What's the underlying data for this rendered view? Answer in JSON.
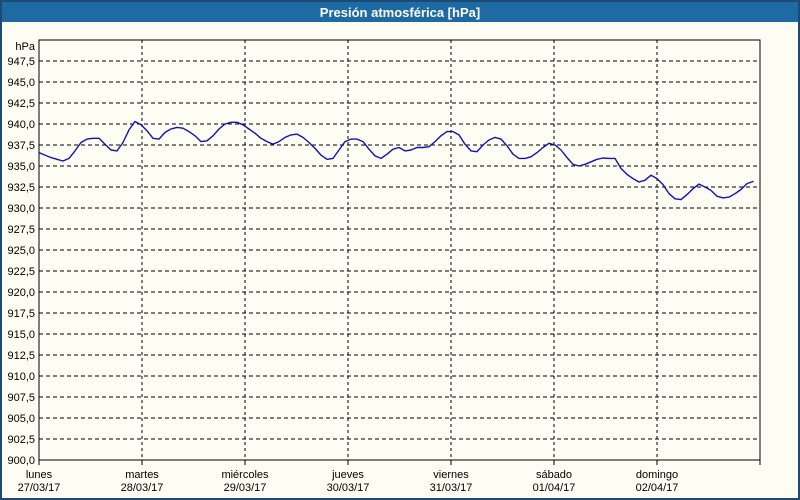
{
  "window": {
    "title": "Presión atmosférica [hPa]"
  },
  "colors": {
    "titlebar_bg": "#1e6ba4",
    "titlebar_text": "#ffffff",
    "window_border": "#1c4a74",
    "background": "#fdfdf4",
    "grid": "#000000",
    "series_line": "#1212b2"
  },
  "chart_data": {
    "type": "line",
    "title": "Presión atmosférica [hPa]",
    "grid": "dashed",
    "legend": "none",
    "y_axis": {
      "unit_label": "hPa",
      "min": 900,
      "max": 950,
      "tick_step": 2.5,
      "decimal_separator": ",",
      "tick_labels": [
        "947,5",
        "945,0",
        "942,5",
        "940,0",
        "937,5",
        "935,0",
        "932,5",
        "930,0",
        "927,5",
        "925,0",
        "922,5",
        "920,0",
        "917,5",
        "915,0",
        "912,5",
        "910,0",
        "907,5",
        "905,0",
        "902,5",
        "900,0"
      ]
    },
    "x_axis": {
      "days": [
        {
          "name": "lunes",
          "date": "27/03/17"
        },
        {
          "name": "martes",
          "date": "28/03/17"
        },
        {
          "name": "miércoles",
          "date": "29/03/17"
        },
        {
          "name": "jueves",
          "date": "30/03/17"
        },
        {
          "name": "viernes",
          "date": "31/03/17"
        },
        {
          "name": "sábado",
          "date": "01/04/17"
        },
        {
          "name": "domingo",
          "date": "02/04/17"
        }
      ]
    },
    "series": [
      {
        "name": "Presión atmosférica",
        "unit": "hPa",
        "points": [
          [
            0.0,
            936.6
          ],
          [
            0.058,
            936.3
          ],
          [
            0.117,
            936.0
          ],
          [
            0.175,
            935.8
          ],
          [
            0.233,
            935.6
          ],
          [
            0.291,
            935.9
          ],
          [
            0.35,
            936.8
          ],
          [
            0.408,
            937.8
          ],
          [
            0.466,
            938.2
          ],
          [
            0.524,
            938.3
          ],
          [
            0.583,
            938.3
          ],
          [
            0.641,
            937.6
          ],
          [
            0.699,
            936.9
          ],
          [
            0.757,
            936.8
          ],
          [
            0.816,
            937.8
          ],
          [
            0.874,
            939.3
          ],
          [
            0.932,
            940.3
          ],
          [
            0.99,
            939.9
          ],
          [
            1.049,
            939.2
          ],
          [
            1.107,
            938.3
          ],
          [
            1.165,
            938.2
          ],
          [
            1.223,
            939.0
          ],
          [
            1.282,
            939.4
          ],
          [
            1.34,
            939.6
          ],
          [
            1.398,
            939.5
          ],
          [
            1.456,
            939.1
          ],
          [
            1.515,
            938.6
          ],
          [
            1.573,
            937.9
          ],
          [
            1.631,
            938.0
          ],
          [
            1.689,
            938.6
          ],
          [
            1.748,
            939.4
          ],
          [
            1.806,
            940.0
          ],
          [
            1.864,
            940.2
          ],
          [
            1.922,
            940.2
          ],
          [
            1.981,
            939.9
          ],
          [
            2.039,
            939.4
          ],
          [
            2.097,
            938.9
          ],
          [
            2.155,
            938.3
          ],
          [
            2.214,
            937.9
          ],
          [
            2.272,
            937.6
          ],
          [
            2.33,
            937.9
          ],
          [
            2.388,
            938.4
          ],
          [
            2.447,
            938.7
          ],
          [
            2.505,
            938.8
          ],
          [
            2.563,
            938.4
          ],
          [
            2.621,
            937.8
          ],
          [
            2.68,
            937.1
          ],
          [
            2.738,
            936.3
          ],
          [
            2.796,
            935.8
          ],
          [
            2.854,
            935.9
          ],
          [
            2.913,
            936.9
          ],
          [
            2.971,
            937.9
          ],
          [
            3.029,
            938.2
          ],
          [
            3.087,
            938.2
          ],
          [
            3.146,
            937.9
          ],
          [
            3.204,
            937.0
          ],
          [
            3.262,
            936.2
          ],
          [
            3.32,
            935.9
          ],
          [
            3.379,
            936.4
          ],
          [
            3.437,
            937.0
          ],
          [
            3.495,
            937.2
          ],
          [
            3.553,
            936.8
          ],
          [
            3.612,
            936.9
          ],
          [
            3.67,
            937.2
          ],
          [
            3.728,
            937.2
          ],
          [
            3.786,
            937.3
          ],
          [
            3.845,
            937.9
          ],
          [
            3.903,
            938.6
          ],
          [
            3.961,
            939.1
          ],
          [
            4.019,
            939.1
          ],
          [
            4.078,
            938.7
          ],
          [
            4.136,
            937.6
          ],
          [
            4.194,
            936.8
          ],
          [
            4.252,
            936.7
          ],
          [
            4.311,
            937.5
          ],
          [
            4.369,
            938.1
          ],
          [
            4.427,
            938.4
          ],
          [
            4.485,
            938.2
          ],
          [
            4.544,
            937.4
          ],
          [
            4.602,
            936.4
          ],
          [
            4.66,
            935.9
          ],
          [
            4.718,
            935.9
          ],
          [
            4.777,
            936.1
          ],
          [
            4.835,
            936.6
          ],
          [
            4.893,
            937.2
          ],
          [
            4.951,
            937.7
          ],
          [
            5.01,
            937.5
          ],
          [
            5.068,
            936.9
          ],
          [
            5.126,
            936.0
          ],
          [
            5.184,
            935.2
          ],
          [
            5.243,
            935.0
          ],
          [
            5.301,
            935.2
          ],
          [
            5.359,
            935.5
          ],
          [
            5.417,
            935.8
          ],
          [
            5.476,
            935.95
          ],
          [
            5.534,
            935.9
          ],
          [
            5.592,
            935.9
          ],
          [
            5.65,
            934.7
          ],
          [
            5.709,
            934.0
          ],
          [
            5.767,
            933.5
          ],
          [
            5.825,
            933.1
          ],
          [
            5.883,
            933.3
          ],
          [
            5.942,
            933.9
          ],
          [
            6.0,
            933.5
          ],
          [
            6.058,
            932.8
          ],
          [
            6.117,
            931.7
          ],
          [
            6.175,
            931.1
          ],
          [
            6.233,
            931.0
          ],
          [
            6.291,
            931.6
          ],
          [
            6.35,
            932.3
          ],
          [
            6.408,
            932.85
          ],
          [
            6.466,
            932.5
          ],
          [
            6.524,
            932.1
          ],
          [
            6.583,
            931.4
          ],
          [
            6.641,
            931.2
          ],
          [
            6.699,
            931.3
          ],
          [
            6.757,
            931.7
          ],
          [
            6.816,
            932.2
          ],
          [
            6.874,
            932.9
          ],
          [
            6.932,
            933.15
          ]
        ]
      }
    ]
  }
}
